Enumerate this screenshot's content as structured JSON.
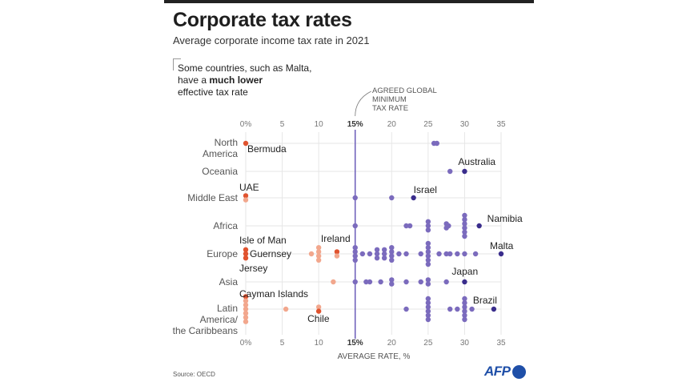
{
  "title": "Corporate tax rates",
  "subtitle": "Average corporate income tax rate in 2021",
  "note": {
    "pre": "Some countries, such as Malta,",
    "mid_pre": "have a ",
    "bold": "much lower",
    "post": "effective tax rate"
  },
  "source": "Source: OECD",
  "logo": "AFP",
  "colors": {
    "below": "#f2a78d",
    "below_highlight": "#e0532f",
    "above": "#7b6bbd",
    "above_highlight": "#3a2d8c",
    "minimum_line": "#6a5bb8",
    "grid": "#e6e6e6"
  },
  "chart_data": {
    "type": "scatter",
    "title": "Corporate tax rates",
    "xlabel": "AVERAGE RATE, %",
    "xlim": [
      0,
      35
    ],
    "xticks": [
      "0%",
      "5",
      "10",
      "15%",
      "20",
      "25",
      "30",
      "35"
    ],
    "xtick_values": [
      0,
      5,
      10,
      15,
      20,
      25,
      30,
      35
    ],
    "grid": true,
    "reference_line": {
      "value": 15,
      "label": [
        "AGREED GLOBAL",
        "MINIMUM",
        "TAX RATE"
      ]
    },
    "regions": [
      {
        "name": [
          "North",
          "America"
        ],
        "points": [
          {
            "v": 0,
            "hl": true,
            "label": "Bermuda"
          },
          {
            "v": 25.8
          },
          {
            "v": 26.2
          }
        ]
      },
      {
        "name": [
          "Oceania"
        ],
        "points": [
          {
            "v": 28
          },
          {
            "v": 30,
            "hl": true,
            "label": "Australia"
          }
        ]
      },
      {
        "name": [
          "Middle East"
        ],
        "points": [
          {
            "v": 0,
            "hl": true,
            "label": "UAE"
          },
          {
            "v": 0
          },
          {
            "v": 15
          },
          {
            "v": 20
          },
          {
            "v": 23,
            "hl": true,
            "label": "Israel"
          }
        ]
      },
      {
        "name": [
          "Africa"
        ],
        "points": [
          {
            "v": 15
          },
          {
            "v": 22
          },
          {
            "v": 22.5
          },
          {
            "v": 25
          },
          {
            "v": 25
          },
          {
            "v": 25
          },
          {
            "v": 27.5
          },
          {
            "v": 27.8
          },
          {
            "v": 27.5
          },
          {
            "v": 30
          },
          {
            "v": 30
          },
          {
            "v": 30
          },
          {
            "v": 30
          },
          {
            "v": 30
          },
          {
            "v": 30
          },
          {
            "v": 32,
            "hl": true,
            "label": "Namibia"
          }
        ]
      },
      {
        "name": [
          "Europe"
        ],
        "points": [
          {
            "v": 0,
            "hl": true,
            "label": "Isle of Man"
          },
          {
            "v": 0,
            "hl": true,
            "label": "Guernsey"
          },
          {
            "v": 0,
            "hl": true,
            "label": "Jersey"
          },
          {
            "v": 9
          },
          {
            "v": 10
          },
          {
            "v": 10
          },
          {
            "v": 10
          },
          {
            "v": 10
          },
          {
            "v": 12.5,
            "hl": true,
            "label": "Ireland"
          },
          {
            "v": 12.5
          },
          {
            "v": 15
          },
          {
            "v": 15
          },
          {
            "v": 15
          },
          {
            "v": 15
          },
          {
            "v": 16
          },
          {
            "v": 17
          },
          {
            "v": 18
          },
          {
            "v": 18
          },
          {
            "v": 18
          },
          {
            "v": 19
          },
          {
            "v": 19
          },
          {
            "v": 19
          },
          {
            "v": 20
          },
          {
            "v": 20
          },
          {
            "v": 20
          },
          {
            "v": 20
          },
          {
            "v": 21
          },
          {
            "v": 22
          },
          {
            "v": 24
          },
          {
            "v": 25
          },
          {
            "v": 25
          },
          {
            "v": 25
          },
          {
            "v": 25
          },
          {
            "v": 25
          },
          {
            "v": 25
          },
          {
            "v": 26.5
          },
          {
            "v": 27.5
          },
          {
            "v": 28
          },
          {
            "v": 29
          },
          {
            "v": 30
          },
          {
            "v": 31.5
          },
          {
            "v": 35,
            "hl": true,
            "label": "Malta"
          }
        ]
      },
      {
        "name": [
          "Asia"
        ],
        "points": [
          {
            "v": 12
          },
          {
            "v": 15
          },
          {
            "v": 16.5
          },
          {
            "v": 17
          },
          {
            "v": 18.5
          },
          {
            "v": 20
          },
          {
            "v": 20
          },
          {
            "v": 22
          },
          {
            "v": 24
          },
          {
            "v": 25
          },
          {
            "v": 25
          },
          {
            "v": 27.5
          },
          {
            "v": 30,
            "hl": true,
            "label": "Japan"
          }
        ]
      },
      {
        "name": [
          "Latin",
          "America/",
          "the Caribbeans"
        ],
        "points": [
          {
            "v": 0,
            "hl": true,
            "label": "Cayman Islands"
          },
          {
            "v": 0
          },
          {
            "v": 0
          },
          {
            "v": 0
          },
          {
            "v": 0
          },
          {
            "v": 0
          },
          {
            "v": 0
          },
          {
            "v": 5.5
          },
          {
            "v": 10
          },
          {
            "v": 10,
            "hl": true,
            "label": "Chile"
          },
          {
            "v": 22
          },
          {
            "v": 25
          },
          {
            "v": 25
          },
          {
            "v": 25
          },
          {
            "v": 25
          },
          {
            "v": 25
          },
          {
            "v": 25
          },
          {
            "v": 28
          },
          {
            "v": 29
          },
          {
            "v": 30
          },
          {
            "v": 30
          },
          {
            "v": 30
          },
          {
            "v": 30
          },
          {
            "v": 30
          },
          {
            "v": 30
          },
          {
            "v": 31
          },
          {
            "v": 34,
            "hl": true,
            "label": "Brazil"
          }
        ]
      }
    ]
  }
}
